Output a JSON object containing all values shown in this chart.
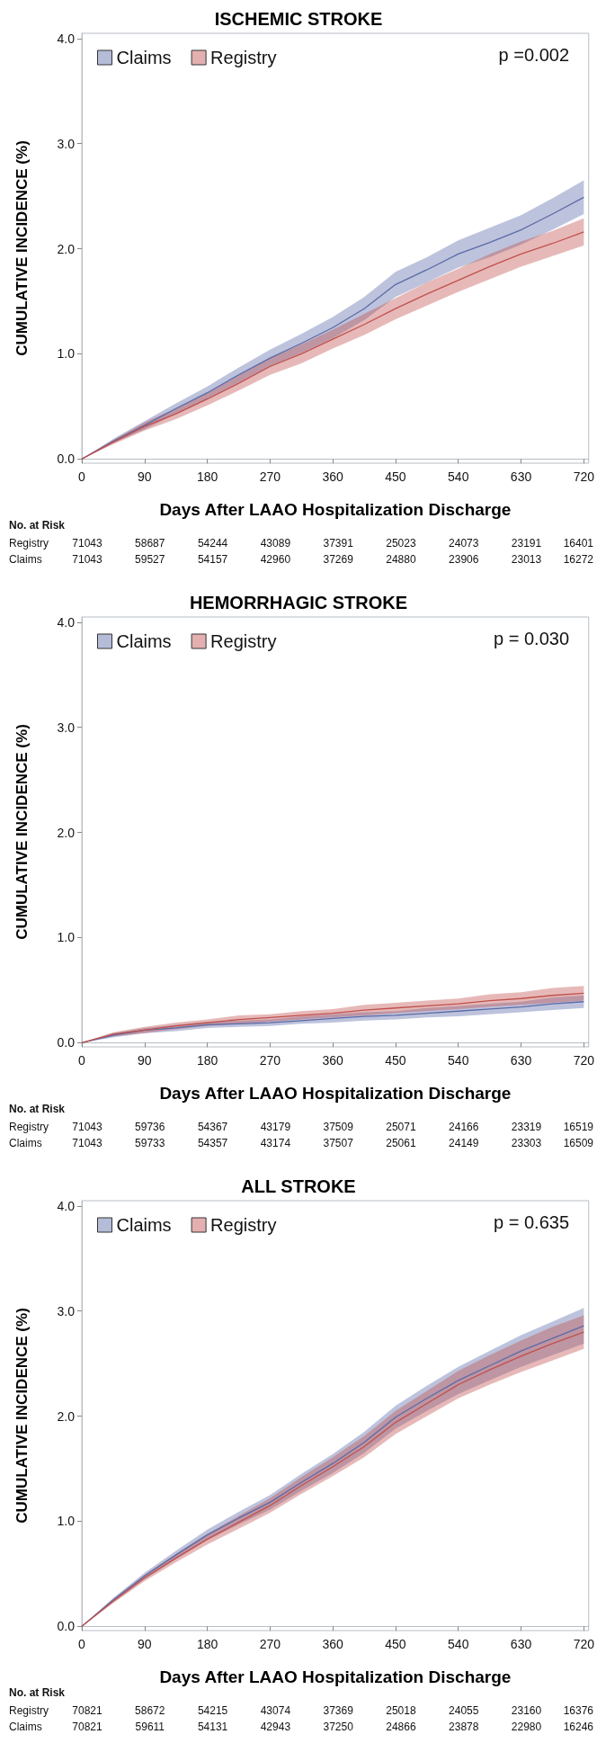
{
  "chart_data": [
    {
      "type": "line",
      "title": "ISCHEMIC STROKE",
      "xlabel": "Days After LAAO Hospitalization Discharge",
      "ylabel": "CUMULATIVE INCIDENCE (%)",
      "legend": "top left",
      "x": [
        0,
        45,
        90,
        135,
        180,
        225,
        270,
        315,
        360,
        405,
        450,
        495,
        540,
        585,
        630,
        675,
        720
      ],
      "xlim": [
        0,
        727
      ],
      "xticks": [
        0,
        90,
        180,
        270,
        360,
        450,
        540,
        630,
        720
      ],
      "ylim": [
        -0.04,
        4.05
      ],
      "yticks": [
        {
          "value": 0,
          "label": "0.0"
        },
        {
          "value": 1,
          "label": "1.0"
        },
        {
          "value": 2,
          "label": "2.0"
        },
        {
          "value": 3,
          "label": "3.0"
        },
        {
          "value": 4,
          "label": "4.0"
        }
      ],
      "series": [
        {
          "name": "Claims",
          "color": "#5b6aa8",
          "values": [
            0,
            0.17,
            0.32,
            0.48,
            0.63,
            0.8,
            0.96,
            1.1,
            1.25,
            1.43,
            1.66,
            1.8,
            1.95,
            2.06,
            2.18,
            2.33,
            2.49
          ],
          "lower": [
            0,
            0.15,
            0.28,
            0.43,
            0.57,
            0.73,
            0.88,
            1.01,
            1.15,
            1.32,
            1.54,
            1.68,
            1.82,
            1.92,
            2.04,
            2.18,
            2.33
          ],
          "upper": [
            0,
            0.19,
            0.36,
            0.53,
            0.69,
            0.87,
            1.04,
            1.19,
            1.35,
            1.54,
            1.78,
            1.92,
            2.08,
            2.2,
            2.32,
            2.48,
            2.65
          ]
        },
        {
          "name": "Registry",
          "color": "#c0504d",
          "values": [
            0,
            0.16,
            0.31,
            0.43,
            0.57,
            0.72,
            0.88,
            1.0,
            1.14,
            1.28,
            1.43,
            1.57,
            1.7,
            1.83,
            1.95,
            2.05,
            2.16
          ],
          "lower": [
            0,
            0.14,
            0.27,
            0.38,
            0.51,
            0.65,
            0.8,
            0.91,
            1.05,
            1.18,
            1.33,
            1.46,
            1.59,
            1.71,
            1.83,
            1.93,
            2.03
          ],
          "upper": [
            0,
            0.18,
            0.35,
            0.48,
            0.63,
            0.79,
            0.96,
            1.09,
            1.23,
            1.38,
            1.53,
            1.68,
            1.81,
            1.95,
            2.07,
            2.17,
            2.29
          ]
        }
      ],
      "annotations": [
        "p =0.002",
        "No. at Risk",
        "Registry",
        "71043",
        "58687",
        "54244",
        "43089",
        "37391",
        "25023",
        "24073",
        "23191",
        "16401",
        "Claims",
        "71043",
        "59527",
        "54157",
        "42960",
        "37269",
        "24880",
        "23906",
        "23013",
        "16272"
      ]
    },
    {
      "type": "line",
      "title": "HEMORRHAGIC STROKE",
      "xlabel": "Days After LAAO Hospitalization Discharge",
      "ylabel": "CUMULATIVE INCIDENCE (%)",
      "legend": "top left",
      "x": [
        0,
        45,
        90,
        135,
        180,
        225,
        270,
        315,
        360,
        405,
        450,
        495,
        540,
        585,
        630,
        675,
        720
      ],
      "xlim": [
        0,
        727
      ],
      "xticks": [
        0,
        90,
        180,
        270,
        360,
        450,
        540,
        630,
        720
      ],
      "ylim": [
        -0.04,
        4.05
      ],
      "yticks": [
        {
          "value": 0,
          "label": "0.0"
        },
        {
          "value": 1,
          "label": "1.0"
        },
        {
          "value": 2,
          "label": "2.0"
        },
        {
          "value": 3,
          "label": "3.0"
        },
        {
          "value": 4,
          "label": "4.0"
        }
      ],
      "series": [
        {
          "name": "Claims",
          "color": "#5b6aa8",
          "values": [
            0,
            0.07,
            0.12,
            0.14,
            0.17,
            0.18,
            0.19,
            0.21,
            0.23,
            0.25,
            0.26,
            0.28,
            0.3,
            0.32,
            0.34,
            0.37,
            0.39
          ],
          "lower": [
            0,
            0.05,
            0.09,
            0.11,
            0.14,
            0.15,
            0.16,
            0.18,
            0.19,
            0.21,
            0.22,
            0.24,
            0.25,
            0.27,
            0.29,
            0.31,
            0.33
          ],
          "upper": [
            0,
            0.09,
            0.14,
            0.17,
            0.2,
            0.21,
            0.22,
            0.25,
            0.27,
            0.29,
            0.3,
            0.33,
            0.35,
            0.37,
            0.39,
            0.43,
            0.45
          ]
        },
        {
          "name": "Registry",
          "color": "#c0504d",
          "values": [
            0,
            0.08,
            0.12,
            0.16,
            0.19,
            0.22,
            0.24,
            0.26,
            0.28,
            0.31,
            0.33,
            0.35,
            0.37,
            0.4,
            0.42,
            0.45,
            0.47
          ],
          "lower": [
            0,
            0.06,
            0.09,
            0.13,
            0.16,
            0.18,
            0.2,
            0.22,
            0.24,
            0.26,
            0.28,
            0.3,
            0.32,
            0.34,
            0.36,
            0.38,
            0.4
          ],
          "upper": [
            0,
            0.1,
            0.15,
            0.19,
            0.22,
            0.26,
            0.27,
            0.3,
            0.32,
            0.36,
            0.38,
            0.4,
            0.42,
            0.46,
            0.48,
            0.52,
            0.54
          ]
        }
      ],
      "annotations": [
        "p = 0.030",
        "No. at Risk",
        "Registry",
        "71043",
        "59736",
        "54367",
        "43179",
        "37509",
        "25071",
        "24166",
        "23319",
        "16519",
        "Claims",
        "71043",
        "59733",
        "54357",
        "43174",
        "37507",
        "25061",
        "24149",
        "23303",
        "16509"
      ]
    },
    {
      "type": "line",
      "title": "ALL STROKE",
      "xlabel": "Days After LAAO Hospitalization Discharge",
      "ylabel": "CUMULATIVE INCIDENCE (%)",
      "legend": "top left",
      "x": [
        0,
        45,
        90,
        135,
        180,
        225,
        270,
        315,
        360,
        405,
        450,
        495,
        540,
        585,
        630,
        675,
        720
      ],
      "xlim": [
        0,
        727
      ],
      "xticks": [
        0,
        90,
        180,
        270,
        360,
        450,
        540,
        630,
        720
      ],
      "ylim": [
        -0.04,
        4.05
      ],
      "yticks": [
        {
          "value": 0,
          "label": "0.0"
        },
        {
          "value": 1,
          "label": "1.0"
        },
        {
          "value": 2,
          "label": "2.0"
        },
        {
          "value": 3,
          "label": "3.0"
        },
        {
          "value": 4,
          "label": "4.0"
        }
      ],
      "series": [
        {
          "name": "Claims",
          "color": "#5b6aa8",
          "values": [
            0,
            0.25,
            0.48,
            0.68,
            0.87,
            1.03,
            1.18,
            1.37,
            1.55,
            1.75,
            1.99,
            2.17,
            2.34,
            2.48,
            2.62,
            2.74,
            2.86
          ],
          "lower": [
            0,
            0.23,
            0.45,
            0.64,
            0.82,
            0.97,
            1.11,
            1.29,
            1.46,
            1.65,
            1.88,
            2.05,
            2.21,
            2.34,
            2.47,
            2.58,
            2.69
          ],
          "upper": [
            0,
            0.27,
            0.51,
            0.72,
            0.92,
            1.09,
            1.25,
            1.45,
            1.64,
            1.85,
            2.1,
            2.29,
            2.47,
            2.62,
            2.77,
            2.9,
            3.03
          ]
        },
        {
          "name": "Registry",
          "color": "#c0504d",
          "values": [
            0,
            0.24,
            0.46,
            0.65,
            0.83,
            0.99,
            1.15,
            1.34,
            1.52,
            1.71,
            1.94,
            2.12,
            2.3,
            2.44,
            2.57,
            2.69,
            2.8
          ],
          "lower": [
            0,
            0.22,
            0.43,
            0.61,
            0.78,
            0.93,
            1.08,
            1.26,
            1.43,
            1.61,
            1.83,
            2.0,
            2.17,
            2.3,
            2.42,
            2.53,
            2.64
          ],
          "upper": [
            0,
            0.26,
            0.49,
            0.69,
            0.88,
            1.05,
            1.22,
            1.42,
            1.61,
            1.81,
            2.05,
            2.24,
            2.43,
            2.58,
            2.72,
            2.85,
            2.96
          ]
        }
      ],
      "annotations": [
        "p = 0.635",
        "No. at Risk",
        "Registry",
        "70821",
        "58672",
        "54215",
        "43074",
        "37369",
        "25018",
        "24055",
        "23160",
        "16376",
        "Claims",
        "70821",
        "59611",
        "54131",
        "42943",
        "37250",
        "24866",
        "23878",
        "22980",
        "16246"
      ]
    }
  ]
}
